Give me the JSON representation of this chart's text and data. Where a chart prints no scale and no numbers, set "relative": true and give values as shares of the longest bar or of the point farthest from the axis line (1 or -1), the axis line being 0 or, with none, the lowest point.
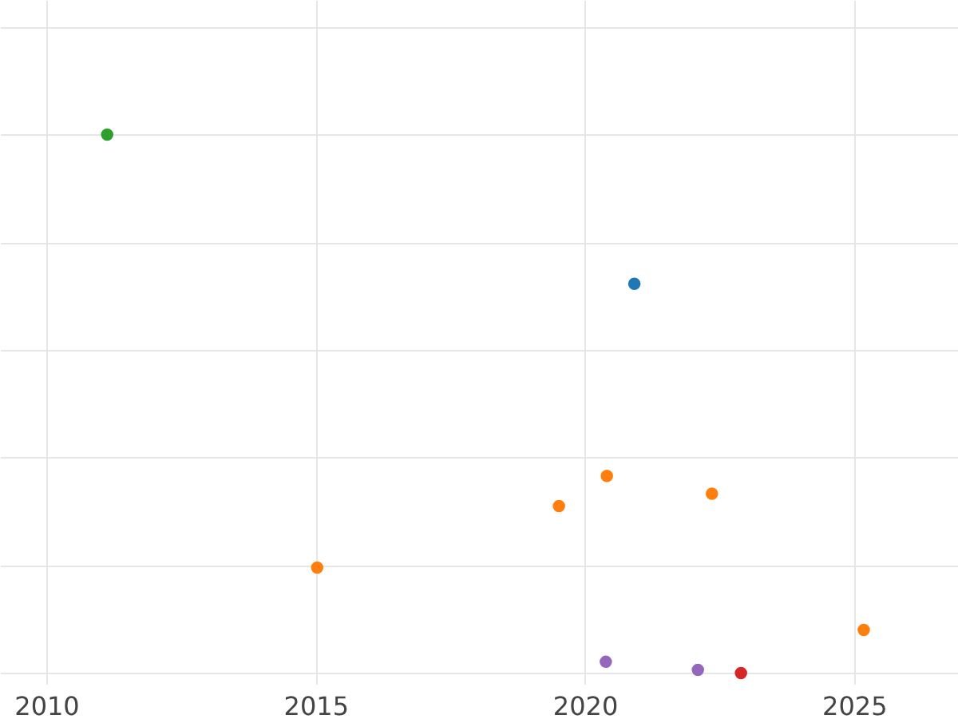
{
  "chart_data": {
    "type": "scatter",
    "relative": true,
    "x": [
      2011.13,
      2020.92,
      2020.41,
      2019.52,
      2022.36,
      2015.03,
      2025.18,
      2020.39,
      2022.1,
      2022.9
    ],
    "values": [
      1,
      0.723,
      0.366,
      0.31,
      0.333,
      0.196,
      0.08,
      0.021,
      0.006,
      0
    ],
    "colors": [
      "#2ca02c",
      "#1f77b4",
      "#ff7f0e",
      "#ff7f0e",
      "#ff7f0e",
      "#ff7f0e",
      "#ff7f0e",
      "#9467bd",
      "#9467bd",
      "#d62728"
    ],
    "xlim": [
      2009.14,
      2026.93
    ],
    "xticks": [
      2010,
      2015,
      2020,
      2025
    ],
    "grid": true,
    "marker": "circle"
  }
}
